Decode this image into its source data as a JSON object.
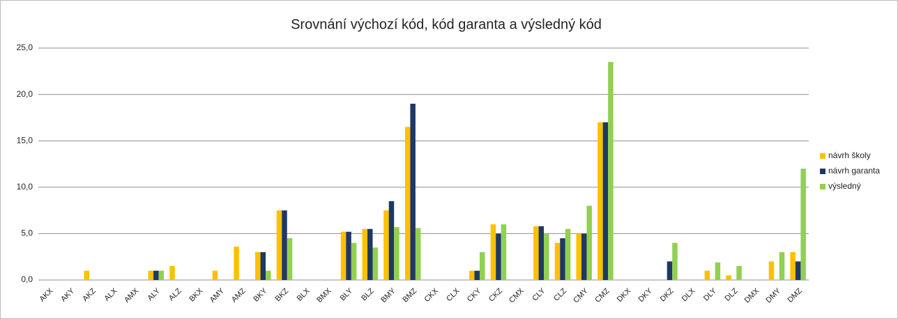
{
  "chart_data": {
    "type": "bar",
    "title": "Srovnání výchozí kód, kód garanta a výsledný kód",
    "categories": [
      "AKX",
      "AKY",
      "AKZ",
      "ALX",
      "AMX",
      "ALY",
      "ALZ",
      "BKX",
      "AMY",
      "AMZ",
      "BKY",
      "BKZ",
      "BLX",
      "BMX",
      "BLY",
      "BLZ",
      "BMY",
      "BMZ",
      "CKX",
      "CLX",
      "CKY",
      "CKZ",
      "CMX",
      "CLY",
      "CLZ",
      "CMY",
      "CMZ",
      "DKX",
      "DKY",
      "DKZ",
      "DLX",
      "DLY",
      "DLZ",
      "DMX",
      "DMY",
      "DMZ"
    ],
    "series": [
      {
        "name": "návrh školy",
        "color": "#ffc000",
        "values": [
          0,
          0,
          1,
          0,
          0,
          1,
          1.5,
          0,
          1,
          3.6,
          3,
          7.5,
          0,
          0,
          5.2,
          5.5,
          7.5,
          16.5,
          0,
          0,
          1,
          6,
          0,
          5.8,
          4,
          5,
          17,
          0,
          0,
          0,
          0,
          1,
          0.5,
          0,
          2,
          3
        ]
      },
      {
        "name": "návrh garanta",
        "color": "#1f3864",
        "values": [
          0,
          0,
          0,
          0,
          0,
          1,
          0,
          0,
          0,
          0,
          3,
          7.5,
          0,
          0,
          5.2,
          5.5,
          8.5,
          19,
          0,
          0,
          1,
          5,
          0,
          5.8,
          4.5,
          5,
          17,
          0,
          0,
          2,
          0,
          0,
          0,
          0,
          0,
          2
        ]
      },
      {
        "name": "výsledný",
        "color": "#92d050",
        "values": [
          0,
          0,
          0,
          0,
          0,
          1,
          0,
          0,
          0,
          0,
          1,
          4.5,
          0,
          0,
          4,
          3.5,
          5.7,
          5.6,
          0,
          0,
          3,
          6,
          0,
          5,
          5.5,
          8,
          23.5,
          0,
          0,
          4,
          0,
          1.9,
          1.5,
          0,
          3,
          12
        ]
      }
    ],
    "ylim": [
      0,
      25
    ],
    "yticks": [
      {
        "value": 0,
        "label": "0,0"
      },
      {
        "value": 5,
        "label": "5,0"
      },
      {
        "value": 10,
        "label": "10,0"
      },
      {
        "value": 15,
        "label": "15,0"
      },
      {
        "value": 20,
        "label": "20,0"
      },
      {
        "value": 25,
        "label": "25,0"
      }
    ],
    "grid": true,
    "legend": "right"
  }
}
